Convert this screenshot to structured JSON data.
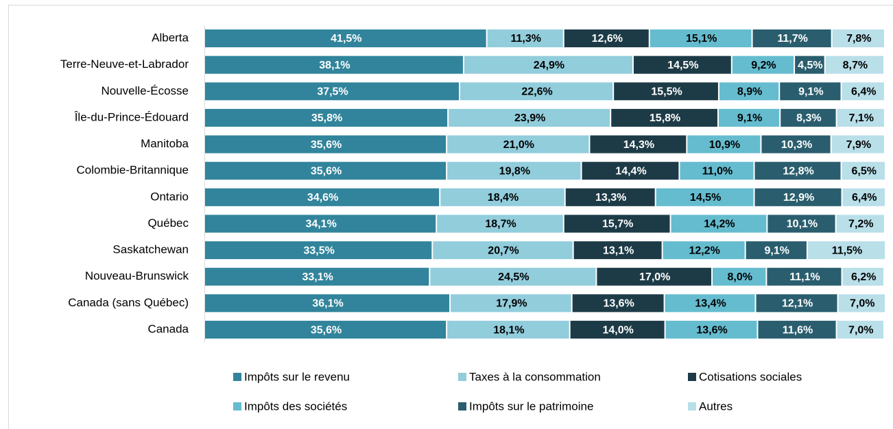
{
  "chart_data": {
    "type": "stacked_barh",
    "categories": [
      "Alberta",
      "Terre-Neuve-et-Labrador",
      "Nouvelle-Écosse",
      "Île-du-Prince-Édouard",
      "Manitoba",
      "Colombie-Britannique",
      "Ontario",
      "Québec",
      "Saskatchewan",
      "Nouveau-Brunswick",
      "Canada (sans Québec)",
      "Canada"
    ],
    "xlim": [
      0,
      100
    ],
    "legend": "bottom",
    "series": [
      {
        "name": "Impôts sur le revenu",
        "color": "#31849b",
        "text_color": "#ffffff",
        "values": [
          41.5,
          38.1,
          37.5,
          35.8,
          35.6,
          35.6,
          34.6,
          34.1,
          33.5,
          33.1,
          36.1,
          35.6
        ],
        "value_labels": [
          "41,5%",
          "38,1%",
          "37,5%",
          "35,8%",
          "35,6%",
          "35,6%",
          "34,6%",
          "34,1%",
          "33,5%",
          "33,1%",
          "36,1%",
          "35,6%"
        ]
      },
      {
        "name": "Taxes à la consommation",
        "color": "#92cddc",
        "text_color": "#000000",
        "values": [
          11.3,
          24.9,
          22.6,
          23.9,
          21.0,
          19.8,
          18.4,
          18.7,
          20.7,
          24.5,
          17.9,
          18.1
        ],
        "value_labels": [
          "11,3%",
          "24,9%",
          "22,6%",
          "23,9%",
          "21,0%",
          "19,8%",
          "18,4%",
          "18,7%",
          "20,7%",
          "24,5%",
          "17,9%",
          "18,1%"
        ]
      },
      {
        "name": "Cotisations sociales",
        "color": "#1d3b47",
        "text_color": "#ffffff",
        "values": [
          12.6,
          14.5,
          15.5,
          15.8,
          14.3,
          14.4,
          13.3,
          15.7,
          13.1,
          17.0,
          13.6,
          14.0
        ],
        "value_labels": [
          "12,6%",
          "14,5%",
          "15,5%",
          "15,8%",
          "14,3%",
          "14,4%",
          "13,3%",
          "15,7%",
          "13,1%",
          "17,0%",
          "13,6%",
          "14,0%"
        ]
      },
      {
        "name": "Impôts des sociétés",
        "color": "#65bccf",
        "text_color": "#000000",
        "values": [
          15.1,
          9.2,
          8.9,
          9.1,
          10.9,
          11.0,
          14.5,
          14.2,
          12.2,
          8.0,
          13.4,
          13.6
        ],
        "value_labels": [
          "15,1%",
          "9,2%",
          "8,9%",
          "9,1%",
          "10,9%",
          "11,0%",
          "14,5%",
          "14,2%",
          "12,2%",
          "8,0%",
          "13,4%",
          "13,6%"
        ]
      },
      {
        "name": "Impôts sur le patrimoine",
        "color": "#2a5e6e",
        "text_color": "#ffffff",
        "values": [
          11.7,
          4.5,
          9.1,
          8.3,
          10.3,
          12.8,
          12.9,
          10.1,
          9.1,
          11.1,
          12.1,
          11.6
        ],
        "value_labels": [
          "11,7%",
          "4,5%",
          "9,1%",
          "8,3%",
          "10,3%",
          "12,8%",
          "12,9%",
          "10,1%",
          "9,1%",
          "11,1%",
          "12,1%",
          "11,6%"
        ]
      },
      {
        "name": "Autres",
        "color": "#b9dfe9",
        "text_color": "#000000",
        "values": [
          7.8,
          8.7,
          6.4,
          7.1,
          7.9,
          6.5,
          6.4,
          7.2,
          11.5,
          6.2,
          7.0,
          7.0
        ],
        "value_labels": [
          "7,8%",
          "8,7%",
          "6,4%",
          "7,1%",
          "7,9%",
          "6,5%",
          "6,4%",
          "7,2%",
          "11,5%",
          "6,2%",
          "7,0%",
          "7,0%"
        ]
      }
    ]
  }
}
